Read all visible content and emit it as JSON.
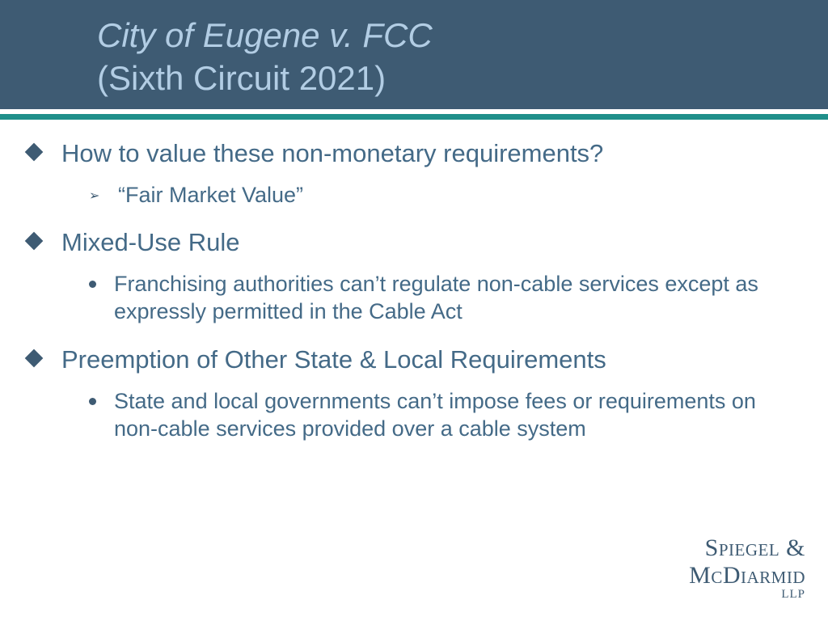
{
  "colors": {
    "header_bg": "#3e5b73",
    "title_text": "#b2cde4",
    "divider": "#1f8f8a",
    "body_text": "#446a87",
    "bullet": "#3e5b73",
    "background": "#ffffff"
  },
  "typography": {
    "title_fontsize": 42,
    "lvl1_fontsize": 31,
    "lvl2_fontsize": 27,
    "logo_fontsize": 30
  },
  "title": {
    "italic": "City of Eugene v. FCC",
    "plain": "(Sixth Circuit 2021)"
  },
  "bullets": [
    {
      "text": "How to value these non-monetary requirements?",
      "children": [
        {
          "style": "arrow",
          "text": "“Fair Market Value”"
        }
      ]
    },
    {
      "text": "Mixed-Use Rule",
      "children": [
        {
          "style": "dot",
          "text": "Franchising authorities can’t regulate non-cable services except as expressly permitted in the Cable Act"
        }
      ]
    },
    {
      "text": "Preemption of Other State & Local Requirements",
      "children": [
        {
          "style": "dot",
          "text": "State and local governments can’t impose fees or requirements on non-cable services provided over a cable system"
        }
      ]
    }
  ],
  "logo": {
    "line1_a": "S",
    "line1_b": "piegel",
    "line1_c": " &",
    "line2_a": "M",
    "line2_b": "c",
    "line2_c": "D",
    "line2_d": "iarmid",
    "llp": "LLP"
  }
}
